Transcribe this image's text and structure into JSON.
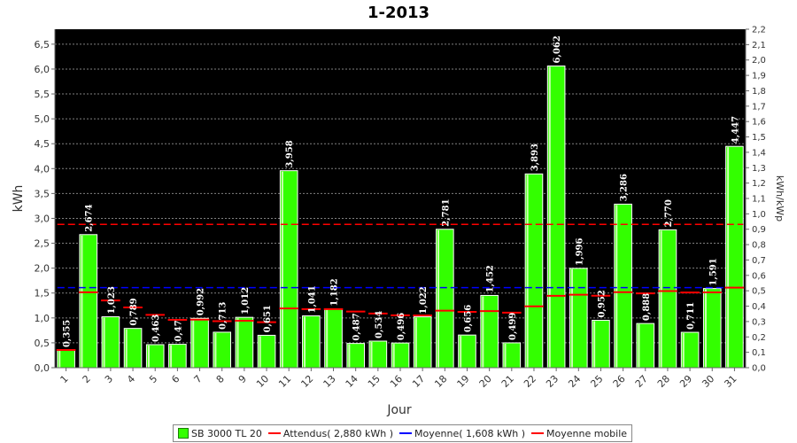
{
  "chart_data": {
    "type": "bar",
    "title": "1-2013",
    "xlabel": "Jour",
    "ylabel": "kWh",
    "ylabel_right": "kWh/kWp",
    "ylim": [
      0,
      6.8
    ],
    "y_ticks": [
      "0,0",
      "0,5",
      "1,0",
      "1,5",
      "2,0",
      "2,5",
      "3,0",
      "3,5",
      "4,0",
      "4,5",
      "5,0",
      "5,5",
      "6,0",
      "6,5"
    ],
    "y2lim": [
      0,
      2.2
    ],
    "y2_ticks": [
      "0,0",
      "0,1",
      "0,2",
      "0,3",
      "0,4",
      "0,5",
      "0,6",
      "0,7",
      "0,8",
      "0,9",
      "1,0",
      "1,1",
      "1,2",
      "1,3",
      "1,4",
      "1,5",
      "1,6",
      "1,7",
      "1,8",
      "1,9",
      "2,0",
      "2,1",
      "2,2"
    ],
    "categories": [
      "1",
      "2",
      "3",
      "4",
      "5",
      "6",
      "7",
      "8",
      "9",
      "10",
      "11",
      "12",
      "13",
      "14",
      "15",
      "16",
      "17",
      "18",
      "19",
      "20",
      "21",
      "22",
      "23",
      "24",
      "25",
      "26",
      "27",
      "28",
      "29",
      "30",
      "31"
    ],
    "series": [
      {
        "name": "SB 3000 TL 20",
        "values": [
          0.355,
          2.674,
          1.023,
          0.789,
          0.463,
          0.47,
          0.992,
          0.713,
          1.012,
          0.651,
          3.958,
          1.041,
          1.182,
          0.487,
          0.534,
          0.496,
          1.022,
          2.781,
          0.656,
          1.452,
          0.499,
          3.893,
          6.062,
          1.996,
          0.952,
          3.286,
          0.888,
          2.77,
          0.711,
          1.591,
          4.447
        ],
        "labels": [
          "0,355",
          "2,674",
          "1,023",
          "0,789",
          "0,463",
          "0,47",
          "0,992",
          "0,713",
          "1,012",
          "0,651",
          "3,958",
          "1,041",
          "1,182",
          "0,487",
          "0,534",
          "0,496",
          "1,022",
          "2,781",
          "0,656",
          "1,452",
          "0,499",
          "3,893",
          "6,062",
          "1,996",
          "0,952",
          "3,286",
          "0,888",
          "2,770",
          "0,711",
          "1,591",
          "4,447"
        ],
        "color": "#33ff00"
      }
    ],
    "attendus": 2.88,
    "moyenne": 1.608,
    "moyenne_mobile": [
      0.355,
      1.515,
      1.351,
      1.21,
      1.061,
      0.962,
      0.966,
      0.934,
      0.943,
      0.914,
      1.191,
      1.177,
      1.178,
      1.129,
      1.089,
      1.052,
      1.051,
      1.147,
      1.121,
      1.137,
      1.106,
      1.233,
      1.443,
      1.466,
      1.446,
      1.517,
      1.494,
      1.539,
      1.51,
      1.513,
      1.608
    ],
    "legend": [
      {
        "label": "SB 3000 TL 20",
        "kind": "box",
        "color": "#33ff00"
      },
      {
        "label": "Attendus( 2,880 kWh )",
        "kind": "line",
        "color": "#ff0000"
      },
      {
        "label": "Moyenne( 1,608 kWh )",
        "kind": "line",
        "color": "#0000ff"
      },
      {
        "label": "Moyenne mobile",
        "kind": "line",
        "color": "#ff0000"
      }
    ],
    "colors": {
      "plot_bg": "#000000",
      "bar": "#33ff00",
      "attendus": "#ff0000",
      "moyenne": "#0000ff",
      "moyenne_mobile": "#ff0000",
      "grid": "#808080"
    },
    "grid": true,
    "legend_position": "bottom"
  }
}
